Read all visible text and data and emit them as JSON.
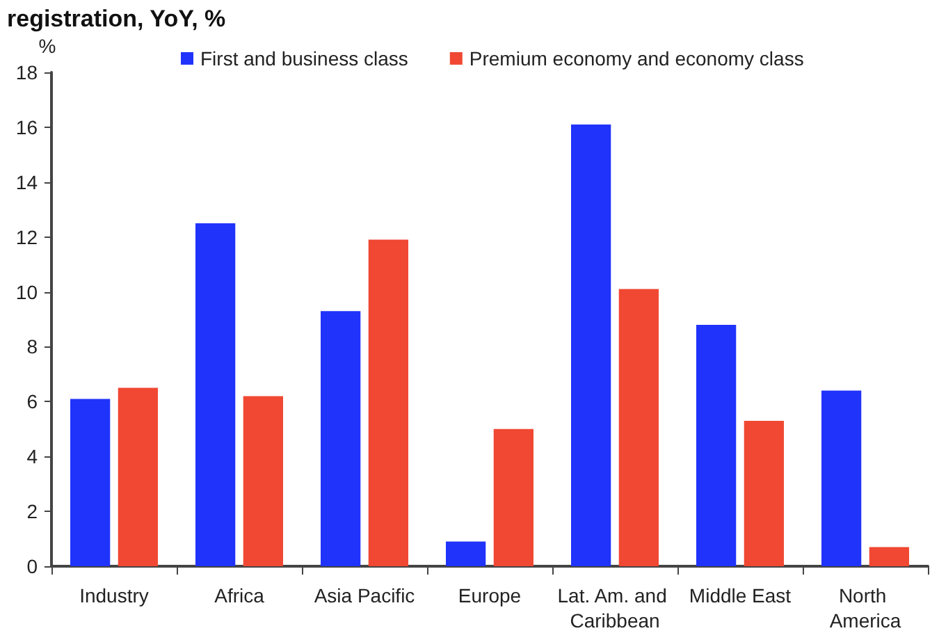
{
  "chart_data": {
    "type": "bar",
    "title": "registration, YoY, %",
    "ylabel": "%",
    "categories": [
      "Industry",
      "Africa",
      "Asia Pacific",
      "Europe",
      "Lat. Am. and Caribbean",
      "Middle East",
      "North America"
    ],
    "series": [
      {
        "name": "First and business class",
        "color": "#2033fb",
        "values": [
          6.1,
          12.5,
          9.3,
          0.9,
          16.1,
          8.8,
          6.4
        ]
      },
      {
        "name": "Premium economy and economy class",
        "color": "#f04833",
        "values": [
          6.5,
          6.2,
          11.9,
          5.0,
          10.1,
          5.3,
          0.7
        ]
      }
    ],
    "ylim": [
      0,
      18
    ],
    "yticks": [
      0,
      2,
      4,
      6,
      8,
      10,
      12,
      14,
      16,
      18
    ],
    "grid": false,
    "legend": "top"
  }
}
